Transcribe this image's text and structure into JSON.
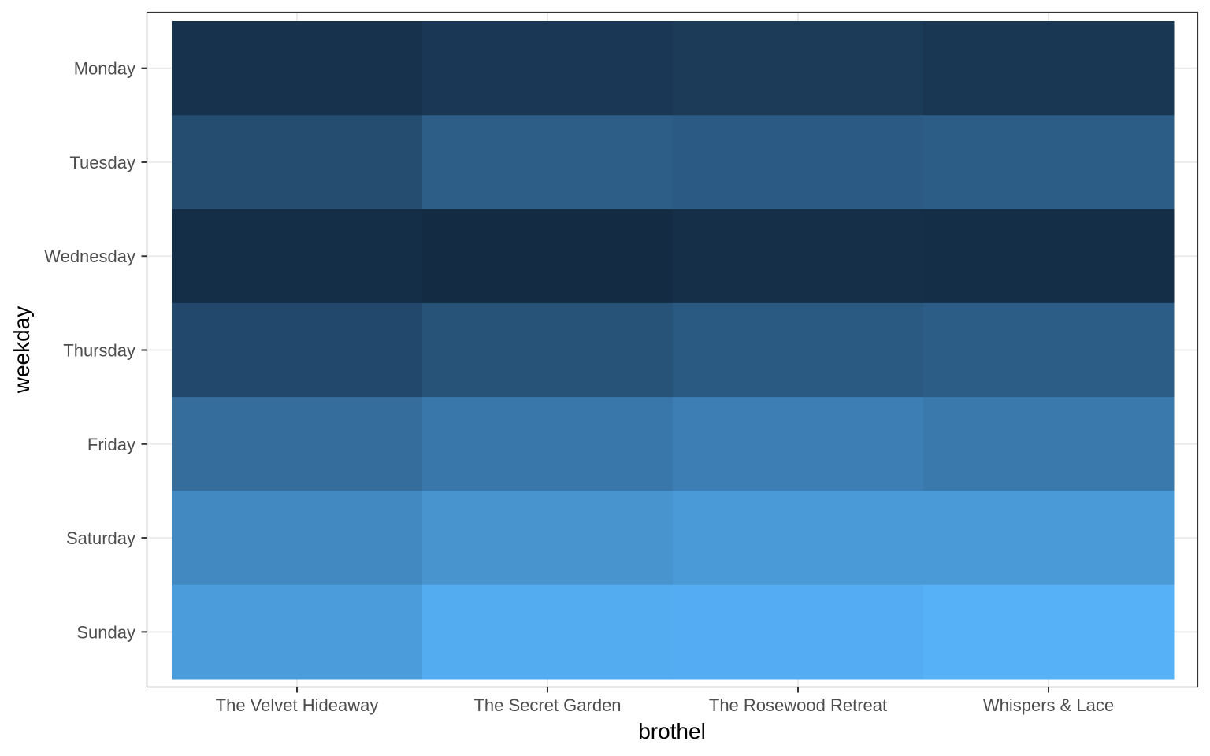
{
  "chart_data": {
    "type": "heatmap",
    "title": "",
    "xlabel": "brothel",
    "ylabel": "weekday",
    "x_categories": [
      "The Velvet Hideaway",
      "The Secret Garden",
      "The Rosewood Retreat",
      "Whispers & Lace"
    ],
    "y_categories": [
      "Monday",
      "Tuesday",
      "Wednesday",
      "Thursday",
      "Friday",
      "Saturday",
      "Sunday"
    ],
    "values": [
      [
        0.05,
        0.1,
        0.12,
        0.09
      ],
      [
        0.25,
        0.38,
        0.36,
        0.37
      ],
      [
        0.02,
        0.0,
        0.03,
        0.02
      ],
      [
        0.22,
        0.3,
        0.35,
        0.37
      ],
      [
        0.5,
        0.57,
        0.63,
        0.58
      ],
      [
        0.7,
        0.78,
        0.83,
        0.83
      ],
      [
        0.84,
        0.96,
        0.97,
        1.0
      ]
    ],
    "value_range": [
      0,
      1
    ],
    "color_low": "#132b43",
    "color_high": "#56b1f7",
    "grid": true,
    "legend": "none"
  },
  "colors": {
    "panel_border": "#333333",
    "gridline": "#ebebeb",
    "tick_mark": "#333333"
  }
}
